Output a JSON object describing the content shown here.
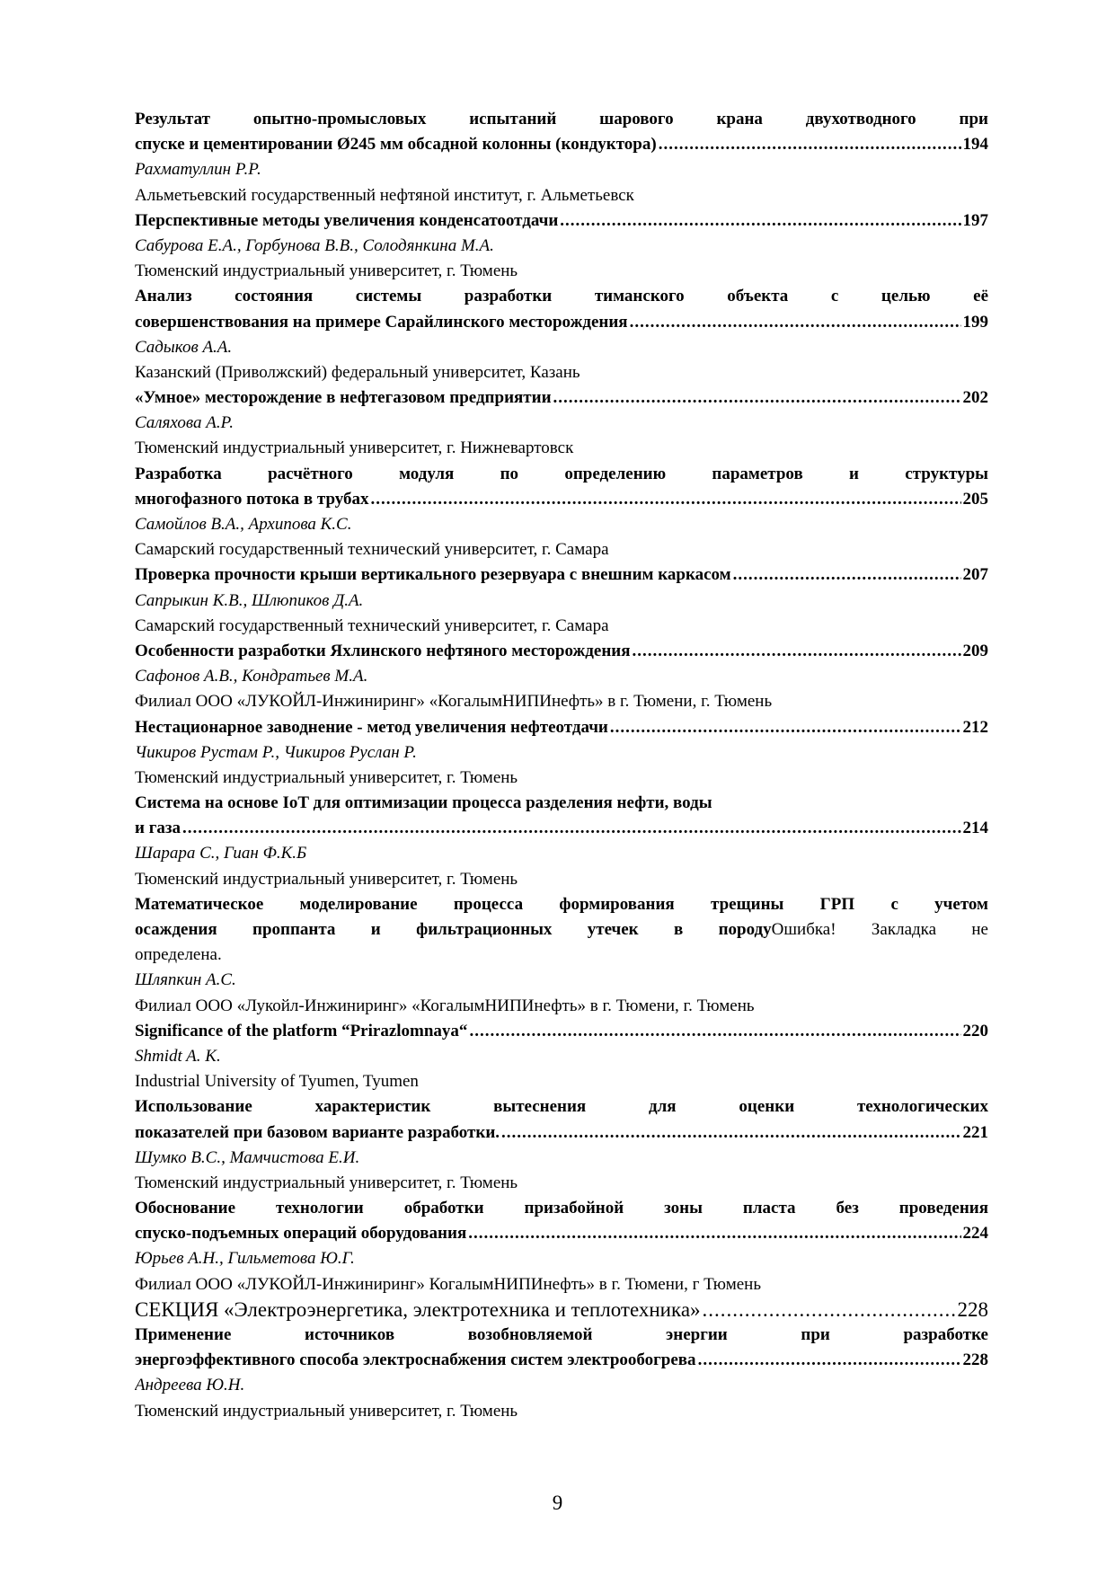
{
  "entries": [
    {
      "title_lines": [
        "Результат опытно-промысловых испытаний шарового крана двухотводного при",
        "спуске и цементировании Ø245 мм обсадной колонны (кондуктора)"
      ],
      "page": "194",
      "authors": "Рахматуллин Р.Р.",
      "affiliation": "Альметьевский государственный нефтяной институт, г. Альметьевск"
    },
    {
      "title_lines": [
        "Перспективные методы увеличения конденсатоотдачи"
      ],
      "page": "197",
      "authors": "Сабурова Е.А., Горбунова В.В., Солодянкина М.А.",
      "affiliation": "Тюменский индустриальный университет, г. Тюмень"
    },
    {
      "title_lines": [
        "Анализ состояния системы разработки тиманского объекта с целью её",
        "совершенствования на примере Сарайлинского месторождения"
      ],
      "page": "199",
      "authors": "Садыков А.А.",
      "affiliation": "Казанский (Приволжский) федеральный университет, Казань"
    },
    {
      "title_lines": [
        "«Умное» месторождение в нефтегазовом предприятии"
      ],
      "page": "202",
      "authors": "Саляхова А.Р.",
      "affiliation": "Тюменский индустриальный университет, г. Нижневартовск"
    },
    {
      "title_lines": [
        "Разработка расчётного модуля по определению параметров и структуры",
        "многофазного потока в трубах"
      ],
      "page": "205",
      "authors": "Самойлов В.А., Архипова К.С.",
      "affiliation": "Самарский государственный технический университет, г. Самара"
    },
    {
      "title_lines": [
        "Проверка прочности крыши вертикального резервуара с внешним каркасом"
      ],
      "page": "207",
      "authors": "Сапрыкин К.В., Шлюпиков Д.А.",
      "affiliation": "Самарский государственный технический университет, г. Самара"
    },
    {
      "title_lines": [
        "Особенности разработки Яхлинского нефтяного месторождения"
      ],
      "page": "209",
      "authors": "Сафонов А.В., Кондратьев М.А.",
      "affiliation": "Филиал ООО «ЛУКОЙЛ-Инжиниринг» «КогалымНИПИнефть» в г. Тюмени, г. Тюмень"
    },
    {
      "title_lines": [
        "Нестационарное заводнение - метод увеличения нефтеотдачи"
      ],
      "page": "212",
      "authors": "Чикиров Рустам Р., Чикиров Руслан Р.",
      "affiliation": "Тюменский индустриальный университет, г. Тюмень"
    },
    {
      "title_lines": [
        "Система на основе IoT для оптимизации процесса разделения нефти, воды",
        "и газа"
      ],
      "hard_break": true,
      "page": "214",
      "authors": "Шарара С., Гиан Ф.К.Б",
      "affiliation": "Тюменский индустриальный университет, г. Тюмень"
    },
    {
      "title_lines": [
        "Математическое моделирование процесса формирования трещины ГРП с учетом",
        "осаждения проппанта и фильтрационных утечек в породу"
      ],
      "error_note_lines": [
        "Ошибка!  Закладка  не",
        "определена."
      ],
      "authors": "Шляпкин А.С.",
      "affiliation": "Филиал ООО «Лукойл-Инжиниринг» «КогалымНИПИнефть» в г. Тюмени, г. Тюмень"
    },
    {
      "title_lines": [
        "Significance of the platform “Prirazlomnaya“"
      ],
      "page": "220",
      "authors": "Shmidt A. K.",
      "affiliation": "Industrial University of Tyumen, Tyumen"
    },
    {
      "title_lines": [
        "Использование характеристик вытеснения для оценки технологических",
        "показателей при базовом варианте разработки."
      ],
      "page": "221",
      "authors": "Шумко В.С., Мамчистова Е.И.",
      "affiliation": "Тюменский индустриальный университет, г. Тюмень"
    },
    {
      "title_lines": [
        "Обоснование технологии обработки призабойной зоны пласта без проведения",
        "спуско-подъемных операций оборудования"
      ],
      "page": "224",
      "authors": "Юрьев А.Н., Гильметова Ю.Г.",
      "affiliation": "Филиал ООО «ЛУКОЙЛ-Инжиниринг» КогалымНИПИнефть» в г. Тюмени, г Тюмень"
    },
    {
      "section": "СЕКЦИЯ «Электроэнергетика, электротехника и теплотехника»",
      "page": "228"
    },
    {
      "title_lines": [
        "Применение источников возобновляемой энергии при разработке",
        "энергоэффективного способа электроснабжения систем электрообогрева"
      ],
      "page": "228",
      "authors": "Андреева Ю.Н.",
      "affiliation": "Тюменский индустриальный университет, г. Тюмень"
    }
  ],
  "page_number": "9"
}
